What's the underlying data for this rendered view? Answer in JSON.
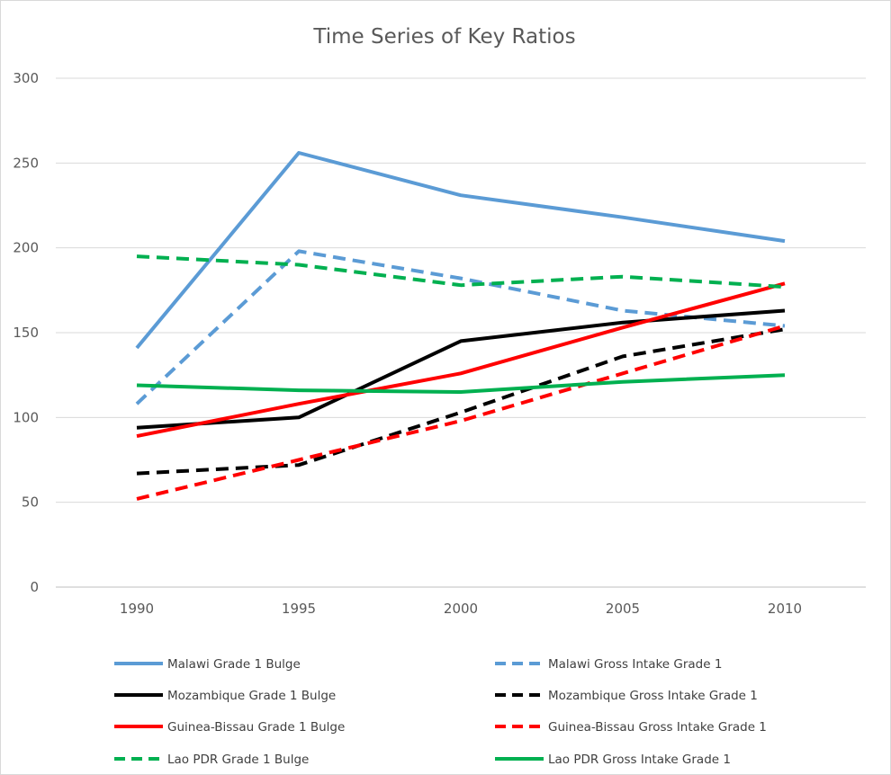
{
  "chart_data": {
    "type": "line",
    "title": "Time Series of Key Ratios",
    "xlabel": "",
    "ylabel": "",
    "ylim": [
      0,
      300
    ],
    "y_ticks": [
      "0",
      "50",
      "100",
      "150",
      "200",
      "250",
      "300"
    ],
    "x": [
      "1990",
      "1995",
      "2000",
      "2005",
      "2010"
    ],
    "grid": true,
    "legend_position": "bottom",
    "series": [
      {
        "name": "Malawi Grade 1 Bulge",
        "color": "#5b9bd5",
        "dashed": false,
        "values": [
          141,
          256,
          231,
          218,
          204
        ]
      },
      {
        "name": "Malawi Gross Intake Grade 1",
        "color": "#5b9bd5",
        "dashed": true,
        "values": [
          108,
          198,
          182,
          163,
          154
        ]
      },
      {
        "name": "Mozambique Grade 1 Bulge",
        "color": "#000000",
        "dashed": false,
        "values": [
          94,
          100,
          145,
          156,
          163
        ]
      },
      {
        "name": "Mozambique Gross Intake Grade 1",
        "color": "#000000",
        "dashed": true,
        "values": [
          67,
          72,
          103,
          136,
          152
        ]
      },
      {
        "name": "Guinea-Bissau Grade 1 Bulge",
        "color": "#ff0000",
        "dashed": false,
        "values": [
          89,
          108,
          126,
          153,
          179
        ]
      },
      {
        "name": "Guinea-Bissau Gross Intake Grade 1",
        "color": "#ff0000",
        "dashed": true,
        "values": [
          52,
          75,
          98,
          126,
          154
        ]
      },
      {
        "name": "Lao PDR Grade 1 Bulge",
        "color": "#00b050",
        "dashed": true,
        "values": [
          195,
          190,
          178,
          183,
          177
        ]
      },
      {
        "name": "Lao PDR Gross Intake Grade 1",
        "color": "#00b050",
        "dashed": false,
        "values": [
          119,
          116,
          115,
          121,
          125
        ]
      }
    ]
  }
}
